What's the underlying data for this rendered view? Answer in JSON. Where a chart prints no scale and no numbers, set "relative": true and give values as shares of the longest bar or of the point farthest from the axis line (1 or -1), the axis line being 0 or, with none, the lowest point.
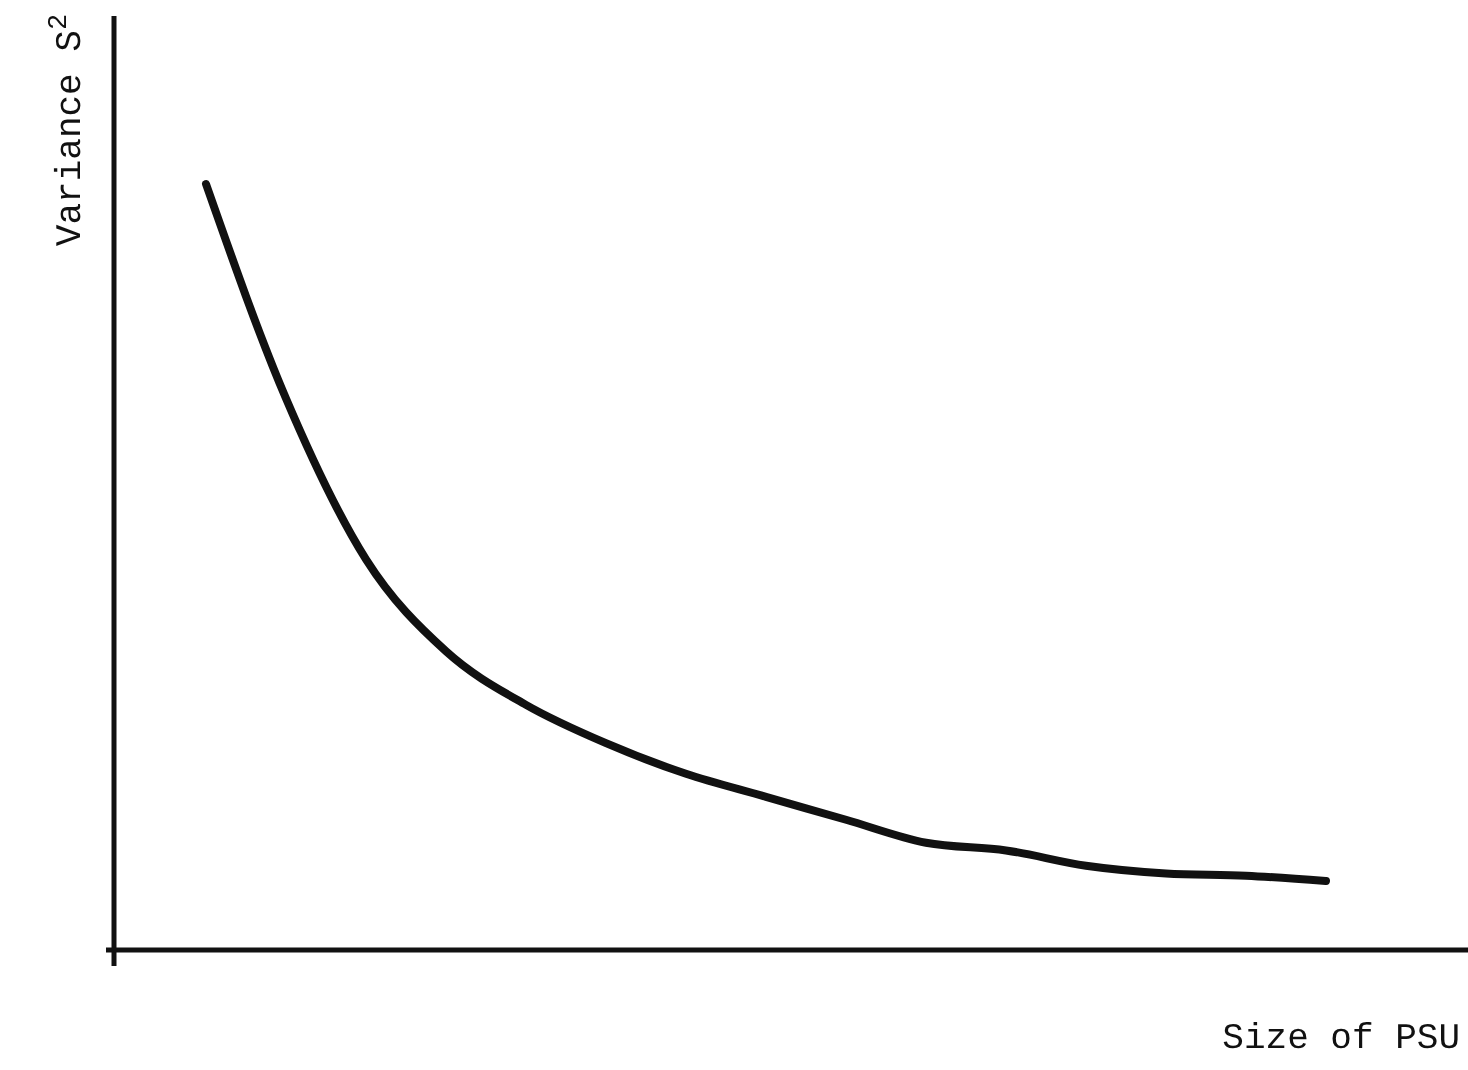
{
  "chart_data": {
    "type": "line",
    "relative": true,
    "xlabel": "Size of PSU",
    "ylabel": "Variance S$^{2}$",
    "color": "#111111",
    "line_style": "solid",
    "categories": [
      null,
      null,
      null,
      null,
      null,
      null,
      null,
      null,
      null,
      null,
      null,
      null,
      null,
      null,
      null
    ],
    "values": [
      1,
      0.72,
      0.51,
      0.39,
      0.32,
      0.27,
      0.23,
      0.2,
      0.17,
      0.14,
      0.13,
      0.11,
      0.1,
      0.097,
      0.09
    ]
  }
}
